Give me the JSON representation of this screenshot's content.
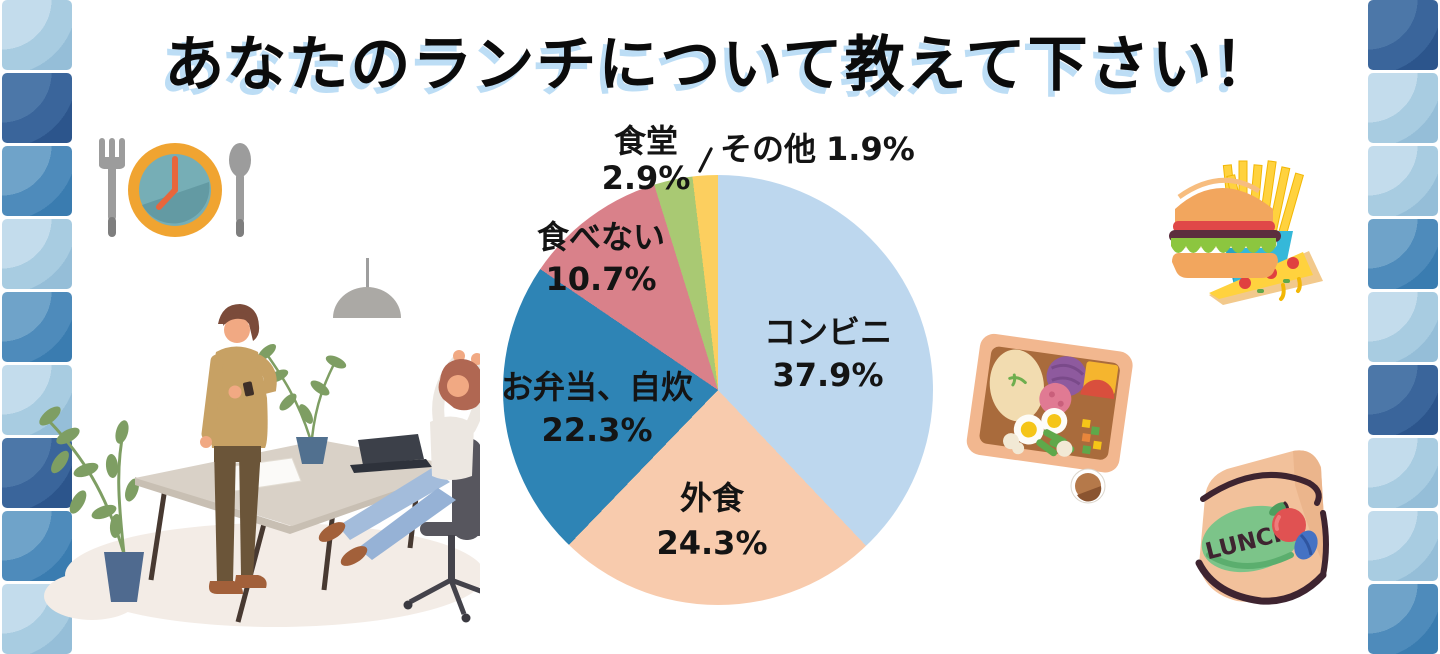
{
  "title": {
    "text": "あなたのランチについて教えて下さい！",
    "color": "#0b0b0b",
    "shadow_color": "#BCDDF5"
  },
  "chart_data": {
    "type": "pie",
    "title": "あなたのランチについて教えて下さい！",
    "labels": [
      "コンビニ",
      "外食",
      "お弁当、自炊",
      "食べない",
      "食堂",
      "その他"
    ],
    "values": [
      37.9,
      24.3,
      22.3,
      10.7,
      2.9,
      1.9
    ],
    "pct_labels": [
      "37.9%",
      "24.3%",
      "22.3%",
      "10.7%",
      "2.9%",
      "1.9%"
    ],
    "colors": [
      "#BDD7EE",
      "#F8CBAD",
      "#2E84B5",
      "#D9818A",
      "#A9C973",
      "#FCCF5F"
    ],
    "start_angle_deg": 0,
    "direction": "clockwise",
    "legend": "none",
    "label_style": "inside-and-outside callouts, bold black text"
  },
  "decor": {
    "tile_palette": {
      "light": "#A6CBE0",
      "medium": "#4385B8",
      "dark": "#33609A"
    },
    "left_tiles": [
      "light",
      "dark",
      "medium",
      "light",
      "medium",
      "light",
      "dark",
      "medium",
      "light"
    ],
    "right_tiles": [
      "dark",
      "light",
      "light",
      "medium",
      "light",
      "dark",
      "light",
      "light",
      "medium"
    ],
    "lunch_bag_label": "LUNCH",
    "illustrations": [
      "utensils-clock-icon",
      "office-stretch-scene",
      "fastfood-icon",
      "bento-box-icon",
      "lunch-bag-icon"
    ]
  }
}
